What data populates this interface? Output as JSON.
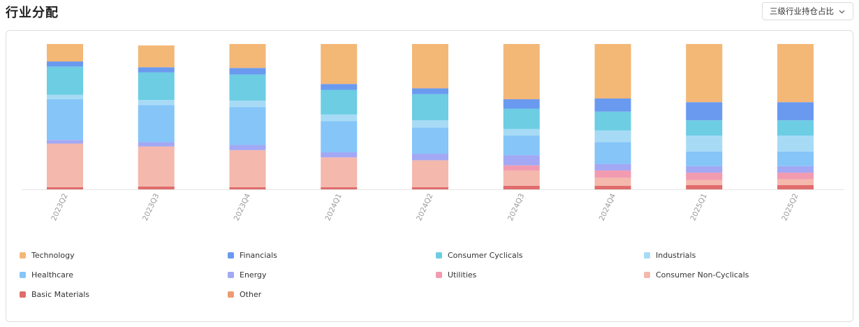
{
  "header": {
    "title": "行业分配",
    "select_label": "三级行业持仓占比"
  },
  "chart_data": {
    "type": "bar",
    "stacked": true,
    "normalized_to": 100,
    "title": "行业分配",
    "xlabel": "",
    "ylabel": "",
    "ylim": [
      0,
      100
    ],
    "grid": false,
    "legend_position": "bottom",
    "categories": [
      "2023Q2",
      "2023Q3",
      "2023Q4",
      "2024Q1",
      "2024Q2",
      "2024Q3",
      "2024Q4",
      "2025Q1",
      "2025Q2"
    ],
    "series": [
      {
        "name": "Basic Materials",
        "color": "#e06c6c",
        "values": [
          1.5,
          2.0,
          1.5,
          1.5,
          1.5,
          2.5,
          2.5,
          3.0,
          3.0
        ]
      },
      {
        "name": "Consumer Non-Cyclicals",
        "color": "#f4b8ad",
        "values": [
          30.0,
          27.5,
          25.5,
          20.5,
          18.5,
          10.5,
          5.5,
          3.5,
          4.0
        ]
      },
      {
        "name": "Utilities",
        "color": "#f29bb0",
        "values": [
          0.0,
          0.0,
          0.0,
          0.0,
          0.0,
          3.5,
          5.0,
          5.0,
          4.5
        ]
      },
      {
        "name": "Energy",
        "color": "#a2a8f4",
        "values": [
          2.5,
          3.0,
          3.5,
          3.5,
          4.5,
          7.0,
          4.5,
          4.5,
          4.5
        ]
      },
      {
        "name": "Healthcare",
        "color": "#85c5f8",
        "values": [
          28.0,
          25.5,
          26.0,
          21.5,
          18.0,
          13.5,
          15.0,
          10.0,
          10.0
        ]
      },
      {
        "name": "Industrials",
        "color": "#a7dbf5",
        "values": [
          3.0,
          3.5,
          4.5,
          4.5,
          5.0,
          4.5,
          8.0,
          11.0,
          11.0
        ]
      },
      {
        "name": "Consumer Cyclicals",
        "color": "#6ccde3",
        "values": [
          19.5,
          19.0,
          18.0,
          17.0,
          18.0,
          14.0,
          13.0,
          10.5,
          10.5
        ]
      },
      {
        "name": "Financials",
        "color": "#6a9af0",
        "values": [
          3.5,
          3.5,
          4.5,
          4.0,
          4.0,
          6.5,
          9.0,
          12.5,
          12.5
        ]
      },
      {
        "name": "Technology",
        "color": "#f3b776",
        "values": [
          12.0,
          15.0,
          16.5,
          27.5,
          30.5,
          38.0,
          37.5,
          40.0,
          40.0
        ]
      },
      {
        "name": "Other",
        "color": "#ee9b74",
        "values": [
          0,
          0,
          0,
          0,
          0,
          0,
          0,
          0,
          0
        ]
      }
    ],
    "legend": [
      {
        "name": "Technology",
        "color": "#f3b776"
      },
      {
        "name": "Financials",
        "color": "#6a9af0"
      },
      {
        "name": "Consumer Cyclicals",
        "color": "#6ccde3"
      },
      {
        "name": "Industrials",
        "color": "#a7dbf5"
      },
      {
        "name": "Healthcare",
        "color": "#85c5f8"
      },
      {
        "name": "Energy",
        "color": "#a2a8f4"
      },
      {
        "name": "Utilities",
        "color": "#f29bb0"
      },
      {
        "name": "Consumer Non-Cyclicals",
        "color": "#f4b8ad"
      },
      {
        "name": "Basic Materials",
        "color": "#e06c6c"
      },
      {
        "name": "Other",
        "color": "#ee9b74"
      }
    ]
  }
}
